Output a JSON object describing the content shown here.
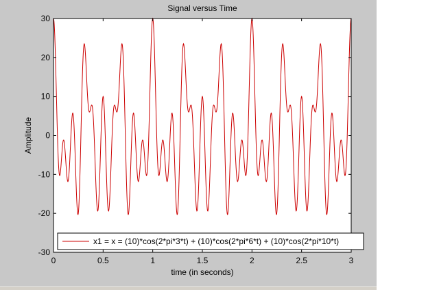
{
  "chart_data": {
    "type": "line",
    "title": "Signal versus Time",
    "xlabel": "time (in seconds)",
    "ylabel": "Amplitude",
    "xlim": [
      0,
      3
    ],
    "ylim": [
      -30,
      30
    ],
    "xticks": [
      0,
      0.5,
      1,
      1.5,
      2,
      2.5,
      3
    ],
    "xtick_labels": [
      "0",
      "0.5",
      "1",
      "1.5",
      "2",
      "2.5",
      "3"
    ],
    "yticks": [
      -30,
      -20,
      -10,
      0,
      10,
      20,
      30
    ],
    "ytick_labels": [
      "-30",
      "-20",
      "-10",
      "0",
      "10",
      "20",
      "30"
    ],
    "grid": false,
    "legend_position": "bottom",
    "series": [
      {
        "name": "x1 = x = (10)*cos(2*pi*3*t) + (10)*cos(2*pi*6*t) + (10)*cos(2*pi*10*t)",
        "color": "#cc0000",
        "formula_terms": [
          {
            "amplitude": 10,
            "frequency": 3
          },
          {
            "amplitude": 10,
            "frequency": 6
          },
          {
            "amplitude": 10,
            "frequency": 10
          }
        ],
        "t_start": 0,
        "t_end": 3,
        "samples": 1200
      }
    ]
  },
  "colors": {
    "figure_background": "#c8c8c8",
    "plot_background": "#ffffff",
    "line": "#cc0000"
  }
}
